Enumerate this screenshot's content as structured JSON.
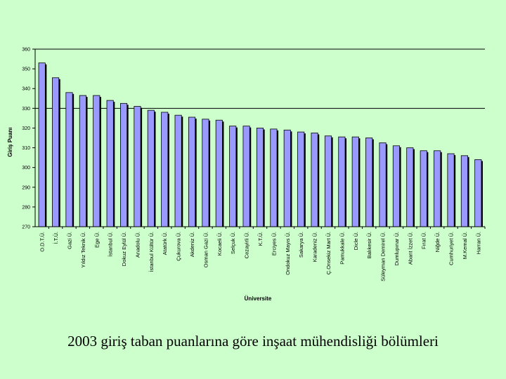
{
  "caption": "2003 giriş taban puanlarına göre inşaat mühendisliği bölümleri",
  "chart_data": {
    "type": "bar",
    "title": "",
    "xlabel": "Üniversite",
    "ylabel": "Giriş Puanı",
    "ylim": [
      270,
      360
    ],
    "yticks": [
      270,
      280,
      290,
      300,
      310,
      320,
      330,
      340,
      350,
      360
    ],
    "grid_lines": [
      330,
      360
    ],
    "bar_color": "#9999ff",
    "categories": [
      "O.D.T.Ü.",
      "İ.T.Ü.",
      "Gazi Ü.",
      "Yıldız Teknik Ü.",
      "Ege Ü.",
      "İstanbul Ü.",
      "Dokuz Eylül Ü.",
      "Anadolu Ü.",
      "İstanbul Kültür Ü.",
      "Atatürk Ü.",
      "Çukurova Ü.",
      "Akdeniz Ü.",
      "Osman Gazi Ü.",
      "Kocaeli Ü.",
      "Selçuk Ü.",
      "Cezayirli Ü.",
      "K.T.Ü.",
      "Erciyes Ü.",
      "Ondokuz Mayıs Ü.",
      "Sakarya Ü.",
      "Karadeniz Ü.",
      "Ç.Onsekiz Mart Ü.",
      "Pamukkale Ü.",
      "Dicle Ü.",
      "Balıkesir Ü.",
      "Süleyman Demirel Ü.",
      "Dumlupınar Ü.",
      "Abant İzzet Ü.",
      "Fırat Ü.",
      "Niğde Ü.",
      "Cumhuriyet Ü.",
      "M.Kemal Ü.",
      "Harran Ü."
    ],
    "values": [
      353,
      345.5,
      338,
      336.5,
      336.5,
      334,
      332.5,
      331,
      329,
      328,
      326.5,
      325.5,
      324.5,
      324,
      321,
      321,
      320,
      319.5,
      319,
      318,
      317.5,
      316,
      315.5,
      315.5,
      315,
      312.5,
      311,
      310,
      308.5,
      308.5,
      307,
      306,
      304
    ],
    "legend": "none"
  }
}
